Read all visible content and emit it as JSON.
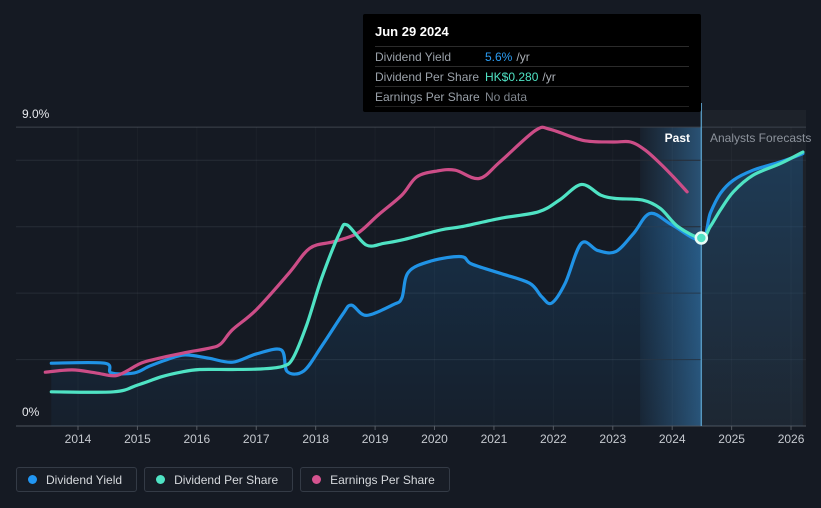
{
  "tooltip": {
    "date": "Jun 29 2024",
    "rows": [
      {
        "label": "Dividend Yield",
        "value": "5.6%",
        "suffix": "/yr",
        "color_key": "yield"
      },
      {
        "label": "Dividend Per Share",
        "value": "HK$0.280",
        "suffix": "/yr",
        "color_key": "dps"
      },
      {
        "label": "Earnings Per Share",
        "value": "No data",
        "suffix": "",
        "color_key": "nodata"
      }
    ]
  },
  "axes": {
    "y_top_label": "9.0%",
    "y_bottom_label": "0%"
  },
  "annotations": {
    "past": "Past",
    "forecast": "Analysts Forecasts"
  },
  "legend": [
    {
      "label": "Dividend Yield",
      "color": "#2196f3"
    },
    {
      "label": "Dividend Per Share",
      "color": "#4fe3c4"
    },
    {
      "label": "Earnings Per Share",
      "color": "#d5538f"
    }
  ],
  "colors": {
    "yield": "#2b9df4",
    "dps": "#4fe3c4",
    "eps": "#cc4d87",
    "nodata": "#7f858d",
    "background": "#151a23",
    "tooltip_bg": "#000000",
    "today_line": "#5fa8d3",
    "marker_fill": "#52e2c4",
    "marker_stroke": "#eafcf7"
  },
  "chart_data": {
    "type": "line",
    "title": "Dividend history and forecast",
    "xlabel": "",
    "ylabel": "",
    "ylim": [
      0,
      9
    ],
    "x_range": [
      2013.35,
      2026.3
    ],
    "x_ticks": [
      2014,
      2015,
      2016,
      2017,
      2018,
      2019,
      2020,
      2021,
      2022,
      2023,
      2024,
      2025,
      2026
    ],
    "y_gridlines": [
      9,
      8,
      6,
      4,
      2,
      0
    ],
    "grid": true,
    "legend_position": "bottom",
    "today_x": 2024.49,
    "highlight_band": [
      2023.46,
      2024.49
    ],
    "marker": {
      "series": "Dividend Per Share",
      "x": 2024.49,
      "y": 5.66
    },
    "eps_no_data_after": 2024.25,
    "y_values_unit": "percent of axis (0-9%)",
    "series": [
      {
        "name": "Dividend Yield",
        "color": "#2093e6",
        "area_fill": true,
        "points": [
          [
            2013.55,
            1.89
          ],
          [
            2014.45,
            1.89
          ],
          [
            2014.56,
            1.6
          ],
          [
            2014.95,
            1.6
          ],
          [
            2015.2,
            1.8
          ],
          [
            2015.5,
            2.0
          ],
          [
            2015.8,
            2.14
          ],
          [
            2016.2,
            2.04
          ],
          [
            2016.6,
            1.92
          ],
          [
            2017.0,
            2.17
          ],
          [
            2017.42,
            2.29
          ],
          [
            2017.52,
            1.64
          ],
          [
            2017.8,
            1.66
          ],
          [
            2018.1,
            2.4
          ],
          [
            2018.45,
            3.35
          ],
          [
            2018.6,
            3.64
          ],
          [
            2018.85,
            3.33
          ],
          [
            2019.3,
            3.65
          ],
          [
            2019.45,
            3.85
          ],
          [
            2019.56,
            4.63
          ],
          [
            2019.95,
            4.97
          ],
          [
            2020.45,
            5.1
          ],
          [
            2020.62,
            4.88
          ],
          [
            2021.1,
            4.6
          ],
          [
            2021.6,
            4.3
          ],
          [
            2021.8,
            3.9
          ],
          [
            2021.97,
            3.7
          ],
          [
            2022.2,
            4.3
          ],
          [
            2022.47,
            5.5
          ],
          [
            2022.75,
            5.28
          ],
          [
            2023.05,
            5.25
          ],
          [
            2023.35,
            5.8
          ],
          [
            2023.63,
            6.4
          ],
          [
            2024.0,
            6.05
          ],
          [
            2024.49,
            5.6
          ],
          [
            2024.64,
            6.4
          ],
          [
            2024.81,
            7.0
          ],
          [
            2025.03,
            7.4
          ],
          [
            2025.36,
            7.7
          ],
          [
            2025.82,
            7.95
          ],
          [
            2026.2,
            8.2
          ]
        ]
      },
      {
        "name": "Earnings Per Share",
        "color": "#cc4d87",
        "area_fill": false,
        "points": [
          [
            2013.45,
            1.62
          ],
          [
            2013.9,
            1.69
          ],
          [
            2014.3,
            1.6
          ],
          [
            2014.65,
            1.52
          ],
          [
            2015.0,
            1.84
          ],
          [
            2015.2,
            1.97
          ],
          [
            2015.75,
            2.19
          ],
          [
            2016.2,
            2.34
          ],
          [
            2016.4,
            2.47
          ],
          [
            2016.6,
            2.9
          ],
          [
            2017.0,
            3.5
          ],
          [
            2017.55,
            4.6
          ],
          [
            2017.9,
            5.35
          ],
          [
            2018.3,
            5.55
          ],
          [
            2018.7,
            5.8
          ],
          [
            2019.05,
            6.35
          ],
          [
            2019.45,
            6.95
          ],
          [
            2019.7,
            7.5
          ],
          [
            2020.05,
            7.68
          ],
          [
            2020.35,
            7.7
          ],
          [
            2020.75,
            7.45
          ],
          [
            2021.1,
            7.95
          ],
          [
            2021.7,
            8.9
          ],
          [
            2021.95,
            8.93
          ],
          [
            2022.5,
            8.6
          ],
          [
            2023.0,
            8.55
          ],
          [
            2023.3,
            8.55
          ],
          [
            2023.55,
            8.3
          ],
          [
            2023.8,
            7.9
          ],
          [
            2024.02,
            7.5
          ],
          [
            2024.25,
            7.05
          ]
        ]
      },
      {
        "name": "Dividend Per Share",
        "color": "#4fe3c4",
        "area_fill": false,
        "points": [
          [
            2013.55,
            1.03
          ],
          [
            2014.6,
            1.03
          ],
          [
            2015.0,
            1.23
          ],
          [
            2015.4,
            1.48
          ],
          [
            2015.75,
            1.63
          ],
          [
            2016.05,
            1.7
          ],
          [
            2016.6,
            1.7
          ],
          [
            2017.1,
            1.72
          ],
          [
            2017.45,
            1.8
          ],
          [
            2017.62,
            2.05
          ],
          [
            2017.85,
            3.05
          ],
          [
            2018.1,
            4.45
          ],
          [
            2018.4,
            5.8
          ],
          [
            2018.53,
            6.05
          ],
          [
            2018.85,
            5.45
          ],
          [
            2019.15,
            5.5
          ],
          [
            2019.5,
            5.62
          ],
          [
            2020.1,
            5.9
          ],
          [
            2020.45,
            6.0
          ],
          [
            2021.1,
            6.25
          ],
          [
            2021.75,
            6.45
          ],
          [
            2022.1,
            6.8
          ],
          [
            2022.47,
            7.27
          ],
          [
            2022.8,
            6.95
          ],
          [
            2023.05,
            6.85
          ],
          [
            2023.5,
            6.8
          ],
          [
            2023.8,
            6.55
          ],
          [
            2024.1,
            6.0
          ],
          [
            2024.49,
            5.66
          ],
          [
            2024.64,
            6.0
          ],
          [
            2024.81,
            6.5
          ],
          [
            2025.03,
            7.05
          ],
          [
            2025.36,
            7.55
          ],
          [
            2025.82,
            7.9
          ],
          [
            2026.2,
            8.25
          ]
        ]
      }
    ]
  }
}
